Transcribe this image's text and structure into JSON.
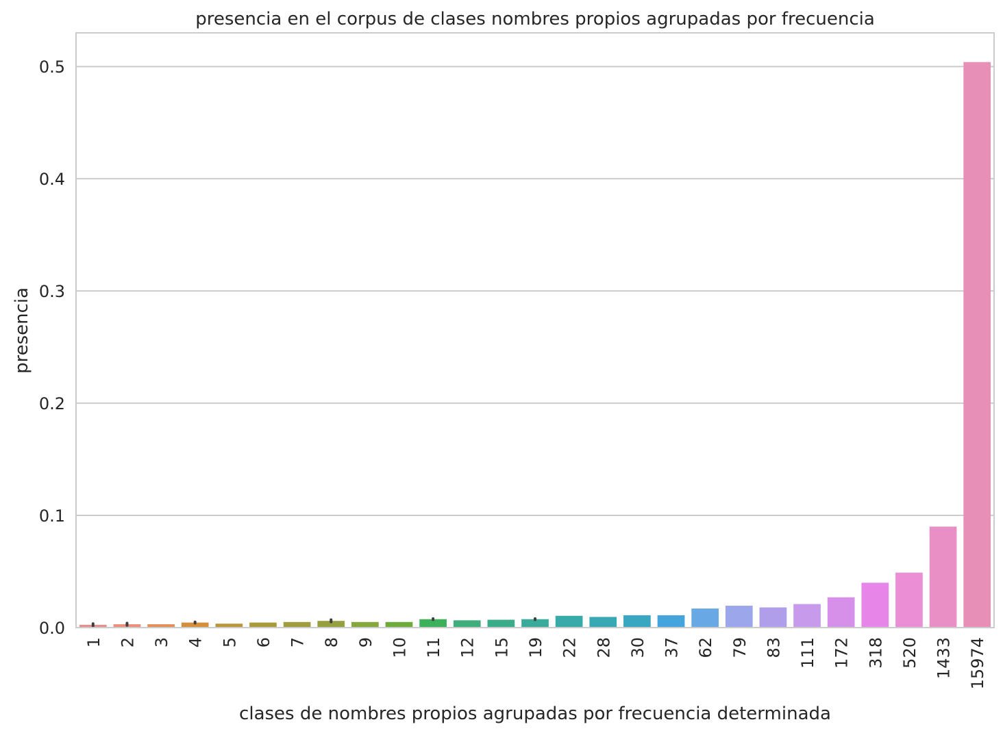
{
  "chart_data": {
    "type": "bar",
    "title": "presencia en el corpus de clases nombres propios agrupadas por frecuencia",
    "xlabel": "clases de nombres propios agrupadas por frecuencia determinada",
    "ylabel": "presencia",
    "ylim": [
      0,
      0.53
    ],
    "yticks": [
      "0.0",
      "0.1",
      "0.2",
      "0.3",
      "0.4",
      "0.5"
    ],
    "grid": "horizontal",
    "categories": [
      "1",
      "2",
      "3",
      "4",
      "5",
      "6",
      "7",
      "8",
      "9",
      "10",
      "11",
      "12",
      "15",
      "19",
      "22",
      "28",
      "30",
      "37",
      "62",
      "79",
      "83",
      "111",
      "172",
      "318",
      "520",
      "1433",
      "15974"
    ],
    "values": [
      0.0025,
      0.003,
      0.003,
      0.0045,
      0.0035,
      0.0045,
      0.005,
      0.006,
      0.005,
      0.005,
      0.0075,
      0.0065,
      0.007,
      0.0075,
      0.0105,
      0.0095,
      0.011,
      0.011,
      0.017,
      0.0195,
      0.018,
      0.021,
      0.027,
      0.04,
      0.049,
      0.09,
      0.504
    ],
    "error_bars": [
      [
        0.0015,
        0.0035
      ],
      [
        0.002,
        0.004
      ],
      null,
      [
        0.004,
        0.005
      ],
      null,
      null,
      null,
      [
        0.005,
        0.007
      ],
      null,
      null,
      [
        0.007,
        0.008
      ],
      null,
      null,
      [
        0.007,
        0.008
      ],
      null,
      null,
      null,
      null,
      null,
      null,
      null,
      null,
      null,
      null,
      null,
      null,
      null
    ],
    "colors": [
      "#e88f8e",
      "#eb8f7a",
      "#e48e5a",
      "#d38f3a",
      "#bb953c",
      "#a99b3c",
      "#a09d3e",
      "#97a040",
      "#86a63e",
      "#6dab3f",
      "#3db05c",
      "#3fad7c",
      "#3aac8a",
      "#3aab9b",
      "#39aaaa",
      "#38a8b4",
      "#3aa7c2",
      "#45a4dc",
      "#68a9e4",
      "#9ba6eb",
      "#b09eeb",
      "#c79aec",
      "#d790ea",
      "#e586e8",
      "#ea8fd6",
      "#e88fc6",
      "#e88fb6"
    ]
  }
}
